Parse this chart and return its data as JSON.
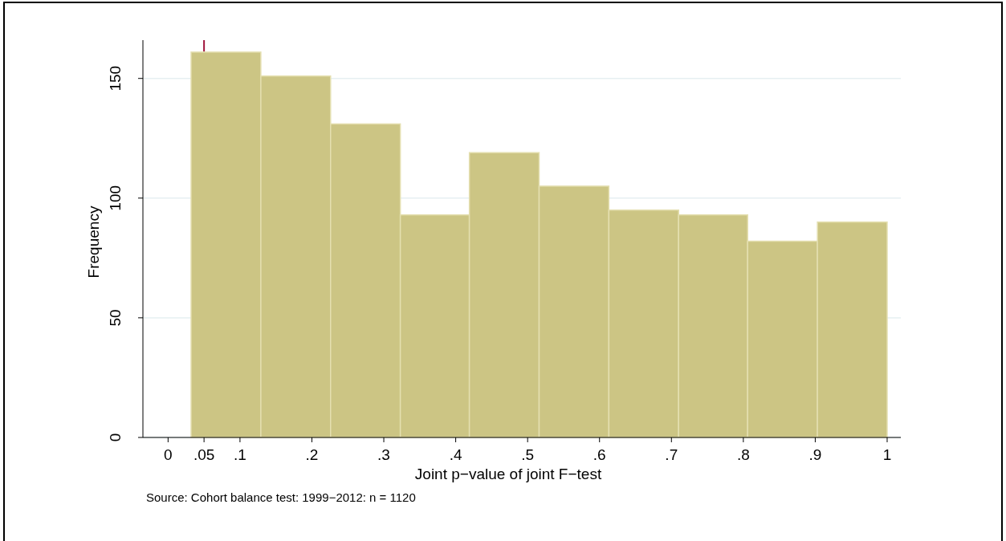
{
  "chart_data": {
    "type": "histogram",
    "xlabel": "Joint p−value of joint F−test",
    "ylabel": "Frequency",
    "bins": [
      0.032,
      0.129,
      0.226,
      0.323,
      0.419,
      0.516,
      0.613,
      0.71,
      0.806,
      0.903,
      1.0
    ],
    "values": [
      161,
      151,
      131,
      93,
      119,
      105,
      95,
      93,
      82,
      90
    ],
    "color": "#ccc584",
    "xlim": [
      -0.035,
      1.019
    ],
    "xticks": [
      0,
      {
        "value": 0.05,
        "label": ".05"
      },
      {
        "value": 0.1,
        "label": ".1"
      },
      {
        "value": 0.2,
        "label": ".2"
      },
      {
        "value": 0.3,
        "label": ".3"
      },
      {
        "value": 0.4,
        "label": ".4"
      },
      {
        "value": 0.5,
        "label": ".5"
      },
      {
        "value": 0.6,
        "label": ".6"
      },
      {
        "value": 0.7,
        "label": ".7"
      },
      {
        "value": 0.8,
        "label": ".8"
      },
      {
        "value": 0.9,
        "label": ".9"
      },
      1
    ],
    "ylim": [
      0,
      166
    ],
    "yticks": [
      0,
      50,
      100,
      150
    ],
    "grid": "y",
    "ref_lines": [
      {
        "axis": "x",
        "value": 0.05,
        "color": "#a0143c"
      }
    ],
    "annotations": [
      "Source: Cohort balance test: 1999−2012: n = 1120"
    ]
  }
}
